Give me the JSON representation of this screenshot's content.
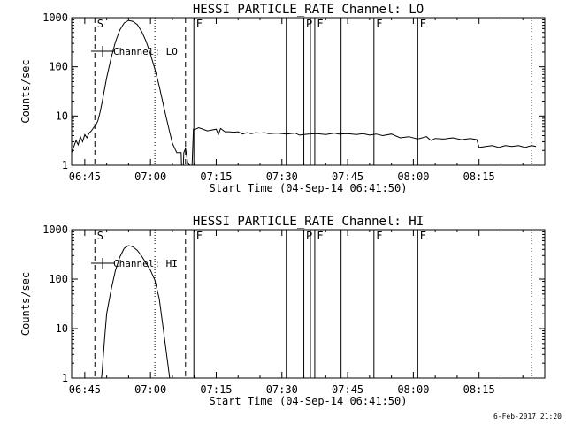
{
  "footer": {
    "date": "6-Feb-2017 21:20"
  },
  "time_axis": {
    "label": "Start Time (04-Sep-14 06:41:50)",
    "tick_minutes": [
      6,
      21,
      36,
      51,
      66,
      81,
      96
    ],
    "tick_labels": [
      "06:45",
      "07:00",
      "07:15",
      "07:30",
      "07:45",
      "08:00",
      "08:15"
    ],
    "range_minutes": [
      3,
      111
    ]
  },
  "chart_data": [
    {
      "type": "line",
      "title": "HESSI PARTICLE_RATE Channel: LO",
      "xlabel": "Start Time (04-Sep-14 06:41:50)",
      "ylabel": "Counts/sec",
      "yscale": "log",
      "ylim": [
        1,
        1000
      ],
      "yticks": [
        1,
        10,
        100,
        1000
      ],
      "yticklabels": [
        "1",
        "10",
        "100",
        "1000"
      ],
      "xlim_minutes": [
        3,
        111
      ],
      "legend": {
        "label": "Channel: LO",
        "position": "top-left"
      },
      "series": [
        {
          "name": "Channel: LO",
          "x": [
            3.0,
            4.0,
            4.5,
            5.0,
            5.5,
            6.0,
            6.5,
            7.0,
            7.5,
            8.0,
            8.5,
            9.0,
            9.5,
            10.0,
            10.5,
            11.0,
            12.0,
            13.0,
            14.0,
            15.0,
            16.0,
            17.0,
            18.0,
            19.0,
            20.0,
            21.0,
            22.0,
            23.0,
            24.0,
            25.0,
            26.0,
            27.0,
            28.0,
            28.1,
            28.5,
            28.6,
            29.0,
            29.5,
            30.0,
            30.5,
            30.8,
            30.9,
            32.0,
            34.0,
            36.0,
            36.5,
            37.0,
            38.0,
            39.0,
            40.0,
            41.0,
            42.0,
            43.0,
            44.0,
            45.0,
            46.0,
            47.0,
            48.0,
            50.0,
            52.0,
            54.0,
            55.0,
            57.0,
            59.0,
            61.0,
            63.0,
            64.0,
            66.0,
            68.0,
            69.5,
            71.0,
            72.5,
            74.0,
            76.0,
            78.0,
            80.0,
            82.0,
            84.0,
            85.0,
            86.0,
            88.0,
            90.0,
            92.0,
            94.0,
            95.5,
            96.0,
            97.5,
            99.0,
            100.5,
            102.0,
            103.5,
            105.0,
            106.5,
            108.0,
            109.0
          ],
          "y": [
            1.8,
            3.2,
            2.6,
            3.8,
            3.0,
            4.2,
            3.6,
            4.5,
            5.0,
            5.8,
            6.5,
            8.0,
            12,
            20,
            35,
            60,
            150,
            320,
            560,
            780,
            880,
            840,
            720,
            520,
            330,
            180,
            90,
            40,
            16,
            6.5,
            2.8,
            1.8,
            1.8,
            1.0,
            0.95,
            1.8,
            2.2,
            1.1,
            1.0,
            1.0,
            5.5,
            5.2,
            5.8,
            5.0,
            5.4,
            4.2,
            5.6,
            4.8,
            4.8,
            4.7,
            4.8,
            4.3,
            4.6,
            4.4,
            4.6,
            4.5,
            4.6,
            4.4,
            4.5,
            4.3,
            4.5,
            4.1,
            4.3,
            4.4,
            4.2,
            4.5,
            4.3,
            4.4,
            4.2,
            4.4,
            4.1,
            4.3,
            4.0,
            4.3,
            3.6,
            3.8,
            3.4,
            3.8,
            3.2,
            3.5,
            3.4,
            3.6,
            3.3,
            3.5,
            3.3,
            2.3,
            2.4,
            2.5,
            2.3,
            2.5,
            2.4,
            2.5,
            2.3,
            2.5,
            2.4
          ]
        }
      ],
      "dashed_markers_minutes": [
        8.3,
        29.0
      ],
      "dotted_markers_minutes": [
        22.0,
        108.0
      ],
      "solid_markers_minutes": [
        30.9,
        52.0,
        56.0,
        57.5,
        58.5,
        64.5,
        72.0,
        82.0
      ],
      "flag_labels": [
        {
          "text": "S",
          "minute": 8.6
        },
        {
          "text": "F",
          "minute": 31.2
        },
        {
          "text": "P",
          "minute": 56.3
        },
        {
          "text": "F",
          "minute": 58.8
        },
        {
          "text": "F",
          "minute": 72.3
        },
        {
          "text": "E",
          "minute": 82.3
        }
      ]
    },
    {
      "type": "line",
      "title": "HESSI PARTICLE_RATE Channel: HI",
      "xlabel": "Start Time (04-Sep-14 06:41:50)",
      "ylabel": "Counts/sec",
      "yscale": "log",
      "ylim": [
        1,
        1000
      ],
      "yticks": [
        1,
        10,
        100,
        1000
      ],
      "yticklabels": [
        "1",
        "10",
        "100",
        "1000"
      ],
      "xlim_minutes": [
        3,
        111
      ],
      "legend": {
        "label": "Channel: HI",
        "position": "top-left"
      },
      "series": [
        {
          "name": "Channel: HI",
          "x": [
            9.8,
            10.0,
            10.5,
            11.0,
            12.0,
            13.0,
            14.0,
            15.0,
            16.0,
            17.0,
            18.0,
            19.0,
            20.0,
            21.0,
            22.0,
            23.0,
            23.8,
            24.5,
            25.0,
            25.4
          ],
          "y": [
            0.95,
            1.5,
            6,
            20,
            60,
            150,
            280,
            420,
            480,
            450,
            380,
            290,
            210,
            150,
            95,
            40,
            12,
            4,
            1.8,
            0.95
          ]
        }
      ],
      "dashed_markers_minutes": [
        8.3,
        29.0
      ],
      "dotted_markers_minutes": [
        22.0,
        108.0
      ],
      "solid_markers_minutes": [
        30.9,
        52.0,
        56.0,
        57.5,
        58.5,
        64.5,
        72.0,
        82.0
      ],
      "flag_labels": [
        {
          "text": "S",
          "minute": 8.6
        },
        {
          "text": "F",
          "minute": 31.2
        },
        {
          "text": "P",
          "minute": 56.3
        },
        {
          "text": "F",
          "minute": 58.8
        },
        {
          "text": "F",
          "minute": 72.3
        },
        {
          "text": "E",
          "minute": 82.3
        }
      ]
    }
  ]
}
